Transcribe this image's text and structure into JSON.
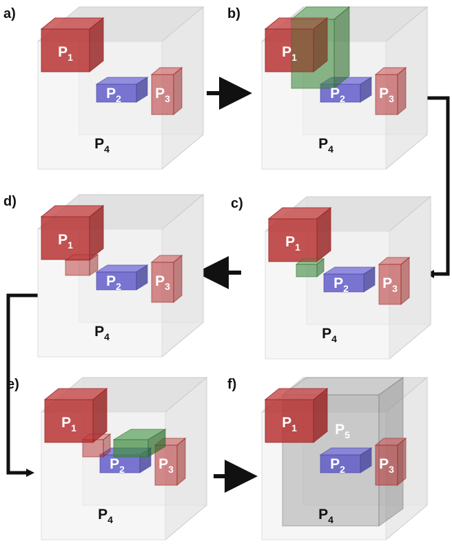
{
  "panels": [
    {
      "label": "a)",
      "parts": [
        {
          "base": "P",
          "sub": "1"
        },
        {
          "base": "P",
          "sub": "2"
        },
        {
          "base": "P",
          "sub": "3"
        },
        {
          "base": "P",
          "sub": "4"
        }
      ]
    },
    {
      "label": "b)",
      "parts": [
        {
          "base": "P",
          "sub": "1"
        },
        {
          "base": "P",
          "sub": "2"
        },
        {
          "base": "P",
          "sub": "3"
        },
        {
          "base": "P",
          "sub": "4"
        }
      ]
    },
    {
      "label": "c)",
      "parts": [
        {
          "base": "P",
          "sub": "1"
        },
        {
          "base": "P",
          "sub": "2"
        },
        {
          "base": "P",
          "sub": "3"
        },
        {
          "base": "P",
          "sub": "4"
        }
      ]
    },
    {
      "label": "d)",
      "parts": [
        {
          "base": "P",
          "sub": "1"
        },
        {
          "base": "P",
          "sub": "2"
        },
        {
          "base": "P",
          "sub": "3"
        },
        {
          "base": "P",
          "sub": "4"
        }
      ]
    },
    {
      "label": "e)",
      "parts": [
        {
          "base": "P",
          "sub": "1"
        },
        {
          "base": "P",
          "sub": "2"
        },
        {
          "base": "P",
          "sub": "3"
        },
        {
          "base": "P",
          "sub": "4"
        }
      ]
    },
    {
      "label": "f)",
      "parts": [
        {
          "base": "P",
          "sub": "1"
        },
        {
          "base": "P",
          "sub": "2"
        },
        {
          "base": "P",
          "sub": "3"
        },
        {
          "base": "P",
          "sub": "4"
        },
        {
          "base": "P",
          "sub": "5"
        }
      ]
    }
  ]
}
